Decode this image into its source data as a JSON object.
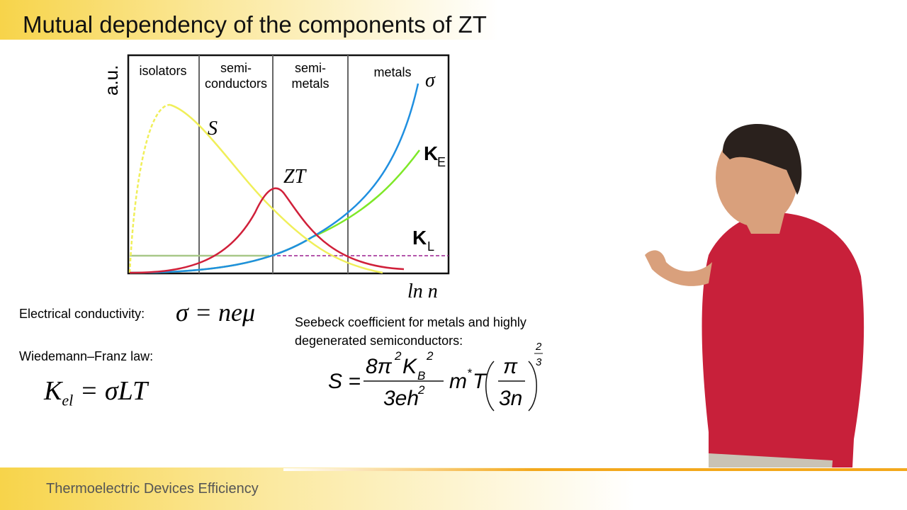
{
  "header": {
    "title": "Mutual dependency of the components of  ZT"
  },
  "diagram": {
    "y_label": "a.u.",
    "x_label": "ln n",
    "regions": [
      {
        "lines": [
          "isolators"
        ]
      },
      {
        "lines": [
          "semi-",
          "conductors"
        ]
      },
      {
        "lines": [
          "semi-",
          "metals"
        ]
      },
      {
        "lines": [
          "metals"
        ]
      }
    ],
    "curve_labels": {
      "sigma": "σ",
      "seebeck": "S",
      "zt": "ZT",
      "ke": {
        "main": "K",
        "sub": "E"
      },
      "kl": {
        "main": "K",
        "sub": "L"
      }
    }
  },
  "formulas": {
    "conductivity": {
      "label": "Electrical conductivity:",
      "expr": "σ = neμ"
    },
    "wiedemann_franz": {
      "label": "Wiedemann–Franz law:",
      "symbol": "K",
      "sub": "el",
      "rest": " = σLT"
    },
    "seebeck": {
      "label": "Seebeck coefficient for metals and highly degenerated semiconductors:",
      "lhs": "S =",
      "num": "8π",
      "num_sup": "2",
      "kb": "K",
      "kb_sub": "B",
      "kb_sup": "2",
      "den": "3eh",
      "den_sup": "2",
      "m": "m",
      "m_sup": "*",
      "t": "T",
      "frac_num": "π",
      "frac_den": "3n",
      "exp_num": "2",
      "exp_den": "3"
    }
  },
  "footer": {
    "text": "Thermoelectric Devices Efficiency"
  }
}
